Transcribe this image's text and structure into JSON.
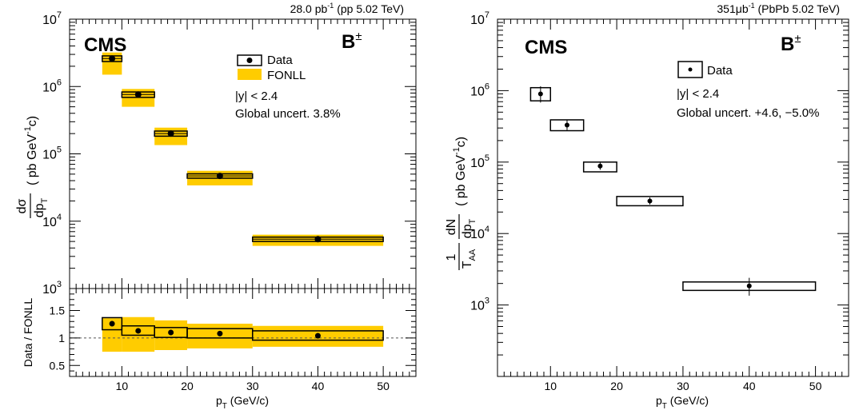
{
  "chart_data": [
    {
      "type": "scatter",
      "panel": "left-main",
      "lumi": "28.0 pb",
      "lumi_exp": "-1",
      "lumi_rest": " (pp 5.02 TeV)",
      "experiment": "CMS",
      "particle": "B",
      "particle_sup": "±",
      "ylabel_num": "dσ",
      "ylabel_den": "dp",
      "ylabel_den_sub": "T",
      "ylabel_units": "( pb GeV",
      "ylabel_units_sup": "-1",
      "ylabel_units_end": "c)",
      "y_log": true,
      "ylim": [
        1000,
        10000000
      ],
      "xlim": [
        2,
        55
      ],
      "legend": [
        "Data",
        "FONLL"
      ],
      "annotations": [
        "|y| < 2.4",
        "Global uncert. 3.8%"
      ],
      "series": [
        {
          "name": "Data",
          "points": [
            {
              "x": 8.5,
              "xlo": 7,
              "xhi": 10,
              "y": 2600000,
              "syst_lo": 2350000,
              "syst_hi": 2850000
            },
            {
              "x": 12.5,
              "xlo": 10,
              "xhi": 15,
              "y": 760000,
              "syst_lo": 690000,
              "syst_hi": 830000
            },
            {
              "x": 17.5,
              "xlo": 15,
              "xhi": 20,
              "y": 200000,
              "syst_lo": 183000,
              "syst_hi": 218000
            },
            {
              "x": 25,
              "xlo": 20,
              "xhi": 30,
              "y": 47000,
              "syst_lo": 43500,
              "syst_hi": 50500
            },
            {
              "x": 40,
              "xlo": 30,
              "xhi": 50,
              "y": 5400,
              "syst_lo": 5000,
              "syst_hi": 5800
            }
          ]
        },
        {
          "name": "FONLL",
          "bands": [
            {
              "xlo": 7,
              "xhi": 10,
              "lo": 1500000,
              "hi": 3200000
            },
            {
              "xlo": 10,
              "xhi": 15,
              "lo": 500000,
              "hi": 920000
            },
            {
              "xlo": 15,
              "xhi": 20,
              "lo": 135000,
              "hi": 245000
            },
            {
              "xlo": 20,
              "xhi": 30,
              "lo": 34000,
              "hi": 56000
            },
            {
              "xlo": 30,
              "xhi": 50,
              "lo": 4300,
              "hi": 6300
            }
          ]
        }
      ]
    },
    {
      "type": "scatter",
      "panel": "left-ratio",
      "ylabel": "Data / FONLL",
      "xlabel": "p",
      "xlabel_sub": "T",
      "xlabel_units": " (GeV/c)",
      "ylim": [
        0.3,
        1.9
      ],
      "xlim": [
        2,
        55
      ],
      "xticks": [
        "10",
        "20",
        "30",
        "40",
        "50"
      ],
      "yticks": [
        "0.5",
        "1",
        "1.5"
      ],
      "reference_line": 1,
      "points": [
        {
          "x": 8.5,
          "xlo": 7,
          "xhi": 10,
          "y": 1.26,
          "syst_lo": 1.15,
          "syst_hi": 1.37,
          "band_lo": 0.75,
          "band_hi": 1.36
        },
        {
          "x": 12.5,
          "xlo": 10,
          "xhi": 15,
          "y": 1.13,
          "syst_lo": 1.05,
          "syst_hi": 1.22,
          "band_lo": 0.75,
          "band_hi": 1.38
        },
        {
          "x": 17.5,
          "xlo": 15,
          "xhi": 20,
          "y": 1.1,
          "syst_lo": 1.01,
          "syst_hi": 1.19,
          "band_lo": 0.78,
          "band_hi": 1.32
        },
        {
          "x": 25,
          "xlo": 20,
          "xhi": 30,
          "y": 1.08,
          "syst_lo": 1.0,
          "syst_hi": 1.17,
          "band_lo": 0.81,
          "band_hi": 1.26
        },
        {
          "x": 40,
          "xlo": 30,
          "xhi": 50,
          "y": 1.04,
          "syst_lo": 0.96,
          "syst_hi": 1.13,
          "band_lo": 0.84,
          "band_hi": 1.22
        }
      ]
    },
    {
      "type": "scatter",
      "panel": "right",
      "lumi": "351",
      "lumi_unit": "μb",
      "lumi_exp": "-1",
      "lumi_rest": " (PbPb 5.02 TeV)",
      "experiment": "CMS",
      "particle": "B",
      "particle_sup": "±",
      "ylabel_pre_num": "1",
      "ylabel_pre_den": "T",
      "ylabel_pre_den_sub": "AA",
      "ylabel_num": "dN",
      "ylabel_den": "dp",
      "ylabel_den_sub": "T",
      "ylabel_units": "( pb GeV",
      "ylabel_units_sup": "-1",
      "ylabel_units_end": "c)",
      "xlabel": "p",
      "xlabel_sub": "T",
      "xlabel_units": " (GeV/c)",
      "y_log": true,
      "ylim": [
        100,
        10000000
      ],
      "xlim": [
        2,
        55
      ],
      "xticks": [
        "10",
        "20",
        "30",
        "40",
        "50"
      ],
      "legend": [
        "Data"
      ],
      "annotations": [
        "|y| < 2.4",
        "Global uncert. +4.6, −5.0%"
      ],
      "series": [
        {
          "name": "Data",
          "points": [
            {
              "x": 8.5,
              "xlo": 7,
              "xhi": 10,
              "y": 900000,
              "syst_lo": 720000,
              "syst_hi": 1100000,
              "stat_lo": 680000,
              "stat_hi": 1150000
            },
            {
              "x": 12.5,
              "xlo": 10,
              "xhi": 15,
              "y": 330000,
              "syst_lo": 275000,
              "syst_hi": 390000,
              "stat_lo": 280000,
              "stat_hi": 385000
            },
            {
              "x": 17.5,
              "xlo": 15,
              "xhi": 20,
              "y": 88000,
              "syst_lo": 73000,
              "syst_hi": 100000,
              "stat_lo": 78000,
              "stat_hi": 98000
            },
            {
              "x": 25,
              "xlo": 20,
              "xhi": 30,
              "y": 28500,
              "syst_lo": 24500,
              "syst_hi": 33000,
              "stat_lo": 25500,
              "stat_hi": 32000
            },
            {
              "x": 40,
              "xlo": 30,
              "xhi": 50,
              "y": 1850,
              "syst_lo": 1600,
              "syst_hi": 2100,
              "stat_lo": 1350,
              "stat_hi": 2400
            }
          ]
        }
      ]
    }
  ]
}
